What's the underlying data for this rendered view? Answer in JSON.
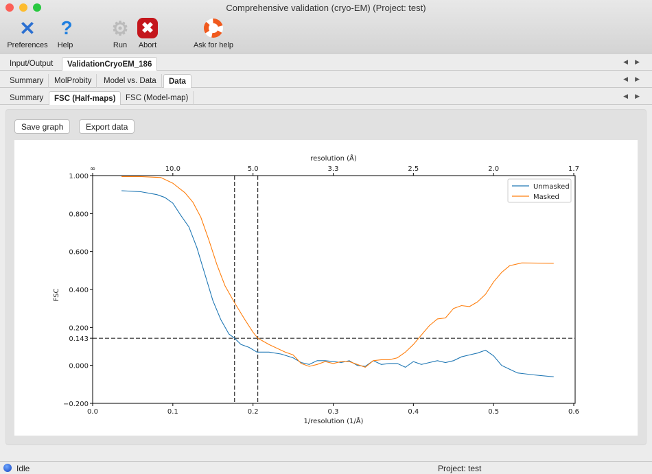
{
  "window": {
    "title": "Comprehensive validation (cryo-EM) (Project: test)"
  },
  "toolbar": [
    {
      "label": "Preferences",
      "icon": "wrench-screwdriver-icon"
    },
    {
      "label": "Help",
      "icon": "question-mark-icon"
    },
    {
      "label": "Run",
      "icon": "gear-icon"
    },
    {
      "label": "Abort",
      "icon": "stop-x-icon"
    },
    {
      "label": "Ask for help",
      "icon": "lifebuoy-icon"
    }
  ],
  "tabs_main": [
    {
      "label": "Input/Output"
    },
    {
      "label": "ValidationCryoEM_186",
      "active": true
    }
  ],
  "tabs_sub": [
    {
      "label": "Summary"
    },
    {
      "label": "MolProbity"
    },
    {
      "label": "Model vs. Data"
    },
    {
      "label": "Data",
      "active": true
    }
  ],
  "tabs_data": [
    {
      "label": "Summary"
    },
    {
      "label": "FSC (Half-maps)",
      "active": true
    },
    {
      "label": "FSC (Model-map)"
    }
  ],
  "buttons": {
    "save": "Save graph",
    "export": "Export data"
  },
  "status": {
    "state": "Idle",
    "project": "Project: test"
  },
  "chart_data": {
    "type": "line",
    "xlabel": "1/resolution (1/Å)",
    "ylabel": "FSC",
    "top_xlabel": "resolution (Å)",
    "xlim": [
      0,
      0.6
    ],
    "ylim": [
      -0.2,
      1.0
    ],
    "xticks": [
      "0.0",
      "0.1",
      "0.2",
      "0.3",
      "0.4",
      "0.5",
      "0.6"
    ],
    "yticks": [
      "1.000",
      "0.800",
      "0.600",
      "0.400",
      "0.200",
      "0.143",
      "0.000",
      "−0.200"
    ],
    "ytick_values": [
      1.0,
      0.8,
      0.6,
      0.4,
      0.2,
      0.143,
      0.0,
      -0.2
    ],
    "top_ticks": [
      "∞",
      "10.0",
      "5.0",
      "3.3",
      "2.5",
      "2.0",
      "1.7"
    ],
    "hline": 0.143,
    "vlines": [
      0.177,
      0.206
    ],
    "legend": "top-right",
    "series": [
      {
        "name": "Unmasked",
        "color": "#1f77b4",
        "x": [
          0.036,
          0.06,
          0.08,
          0.09,
          0.1,
          0.11,
          0.12,
          0.13,
          0.14,
          0.15,
          0.16,
          0.17,
          0.177,
          0.185,
          0.195,
          0.205,
          0.22,
          0.235,
          0.25,
          0.26,
          0.27,
          0.28,
          0.29,
          0.3,
          0.31,
          0.32,
          0.33,
          0.34,
          0.35,
          0.36,
          0.37,
          0.38,
          0.39,
          0.4,
          0.41,
          0.42,
          0.43,
          0.44,
          0.45,
          0.46,
          0.47,
          0.48,
          0.49,
          0.5,
          0.51,
          0.52,
          0.53,
          0.55,
          0.575
        ],
        "y": [
          0.92,
          0.915,
          0.9,
          0.885,
          0.855,
          0.79,
          0.73,
          0.62,
          0.48,
          0.34,
          0.24,
          0.165,
          0.143,
          0.11,
          0.095,
          0.07,
          0.07,
          0.06,
          0.04,
          0.015,
          0.005,
          0.025,
          0.025,
          0.02,
          0.015,
          0.025,
          0.0,
          -0.005,
          0.025,
          0.005,
          0.01,
          0.01,
          -0.01,
          0.02,
          0.005,
          0.015,
          0.025,
          0.015,
          0.025,
          0.045,
          0.055,
          0.065,
          0.08,
          0.05,
          0.0,
          -0.02,
          -0.04,
          -0.05,
          -0.06
        ]
      },
      {
        "name": "Masked",
        "color": "#ff7f0e",
        "x": [
          0.036,
          0.06,
          0.085,
          0.1,
          0.115,
          0.125,
          0.135,
          0.145,
          0.155,
          0.165,
          0.177,
          0.19,
          0.2,
          0.206,
          0.22,
          0.24,
          0.25,
          0.26,
          0.27,
          0.28,
          0.29,
          0.3,
          0.31,
          0.32,
          0.33,
          0.34,
          0.35,
          0.36,
          0.37,
          0.38,
          0.39,
          0.4,
          0.41,
          0.42,
          0.43,
          0.44,
          0.45,
          0.46,
          0.47,
          0.48,
          0.49,
          0.5,
          0.51,
          0.52,
          0.535,
          0.575
        ],
        "y": [
          0.995,
          0.995,
          0.99,
          0.96,
          0.91,
          0.86,
          0.78,
          0.66,
          0.53,
          0.42,
          0.33,
          0.24,
          0.175,
          0.143,
          0.11,
          0.07,
          0.055,
          0.01,
          -0.005,
          0.005,
          0.02,
          0.01,
          0.02,
          0.02,
          0.005,
          -0.01,
          0.025,
          0.03,
          0.03,
          0.04,
          0.07,
          0.11,
          0.16,
          0.21,
          0.245,
          0.25,
          0.3,
          0.315,
          0.31,
          0.335,
          0.375,
          0.44,
          0.49,
          0.525,
          0.54,
          0.538
        ]
      }
    ]
  }
}
